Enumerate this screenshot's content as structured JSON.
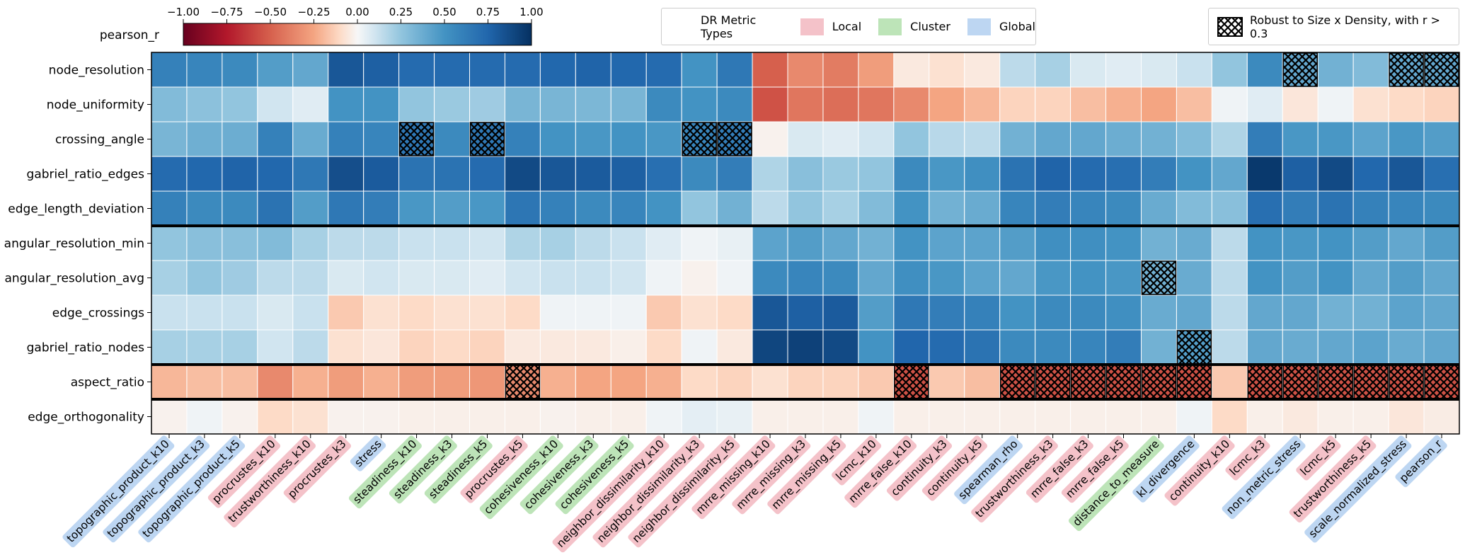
{
  "colorbar": {
    "label": "pearson_r",
    "ticks": [
      "−1.00",
      "−0.75",
      "−0.50",
      "−0.25",
      "0.00",
      "0.25",
      "0.50",
      "0.75",
      "1.00"
    ]
  },
  "legend": {
    "title": "DR Metric Types",
    "items": [
      {
        "label": "Local",
        "color": "#f4c2c9"
      },
      {
        "label": "Cluster",
        "color": "#bde4b8"
      },
      {
        "label": "Global",
        "color": "#bdd6f2"
      }
    ]
  },
  "hatch_legend": {
    "label": "Robust to Size x Density, with r > 0.3"
  },
  "chart_data": {
    "type": "heatmap",
    "colormap": "RdBu",
    "vmin": -1.0,
    "vmax": 1.0,
    "row_groups_separated_after": [
      4,
      8,
      9
    ],
    "rows": [
      "node_resolution",
      "node_uniformity",
      "crossing_angle",
      "gabriel_ratio_edges",
      "edge_length_deviation",
      "angular_resolution_min",
      "angular_resolution_avg",
      "edge_crossings",
      "gabriel_ratio_nodes",
      "aspect_ratio",
      "edge_orthogonality"
    ],
    "columns": [
      {
        "name": "topographic_product_k10",
        "type": "Global"
      },
      {
        "name": "topographic_product_k3",
        "type": "Global"
      },
      {
        "name": "topographic_product_k5",
        "type": "Global"
      },
      {
        "name": "procrustes_k10",
        "type": "Local"
      },
      {
        "name": "trustworthiness_k10",
        "type": "Local"
      },
      {
        "name": "procrustes_k3",
        "type": "Local"
      },
      {
        "name": "stress",
        "type": "Global"
      },
      {
        "name": "steadiness_k10",
        "type": "Cluster"
      },
      {
        "name": "steadiness_k3",
        "type": "Cluster"
      },
      {
        "name": "steadiness_k5",
        "type": "Cluster"
      },
      {
        "name": "procrustes_k5",
        "type": "Local"
      },
      {
        "name": "cohesiveness_k10",
        "type": "Cluster"
      },
      {
        "name": "cohesiveness_k3",
        "type": "Cluster"
      },
      {
        "name": "cohesiveness_k5",
        "type": "Cluster"
      },
      {
        "name": "neighbor_dissimilarity_k10",
        "type": "Local"
      },
      {
        "name": "neighbor_dissimilarity_k3",
        "type": "Local"
      },
      {
        "name": "neighbor_dissimilarity_k5",
        "type": "Local"
      },
      {
        "name": "mrre_missing_k10",
        "type": "Local"
      },
      {
        "name": "mrre_missing_k3",
        "type": "Local"
      },
      {
        "name": "mrre_missing_k5",
        "type": "Local"
      },
      {
        "name": "lcmc_k10",
        "type": "Local"
      },
      {
        "name": "mrre_false_k10",
        "type": "Local"
      },
      {
        "name": "continuity_k3",
        "type": "Local"
      },
      {
        "name": "continuity_k5",
        "type": "Local"
      },
      {
        "name": "spearman_rho",
        "type": "Global"
      },
      {
        "name": "trustworthiness_k3",
        "type": "Local"
      },
      {
        "name": "mrre_false_k3",
        "type": "Local"
      },
      {
        "name": "mrre_false_k5",
        "type": "Local"
      },
      {
        "name": "distance_to_measure",
        "type": "Cluster"
      },
      {
        "name": "kl_divergence",
        "type": "Global"
      },
      {
        "name": "continuity_k10",
        "type": "Local"
      },
      {
        "name": "lcmc_k3",
        "type": "Local"
      },
      {
        "name": "non_metric_stress",
        "type": "Global"
      },
      {
        "name": "lcmc_k5",
        "type": "Local"
      },
      {
        "name": "trustworthiness_k5",
        "type": "Local"
      },
      {
        "name": "scale_normalized_stress",
        "type": "Global"
      },
      {
        "name": "pearson_r",
        "type": "Global"
      }
    ],
    "values": [
      [
        0.6,
        0.58,
        0.55,
        0.45,
        0.4,
        0.82,
        0.78,
        0.72,
        0.72,
        0.72,
        0.72,
        0.74,
        0.76,
        0.74,
        0.72,
        0.5,
        0.65,
        -0.5,
        -0.35,
        -0.4,
        -0.28,
        -0.05,
        -0.08,
        -0.05,
        0.15,
        0.2,
        0.08,
        0.06,
        0.08,
        0.12,
        0.25,
        0.55,
        0.4,
        0.35,
        0.3,
        0.4,
        0.4
      ],
      [
        0.3,
        0.27,
        0.25,
        0.1,
        0.06,
        0.5,
        0.5,
        0.25,
        0.23,
        0.22,
        0.33,
        0.33,
        0.32,
        0.33,
        0.55,
        0.5,
        0.55,
        -0.55,
        -0.42,
        -0.45,
        -0.42,
        -0.35,
        -0.25,
        -0.2,
        -0.12,
        -0.12,
        -0.18,
        -0.22,
        -0.25,
        -0.18,
        0.02,
        0.06,
        -0.06,
        0.02,
        -0.08,
        -0.1,
        -0.12
      ],
      [
        0.33,
        0.36,
        0.37,
        0.6,
        0.38,
        0.6,
        0.58,
        0.65,
        0.55,
        0.65,
        0.6,
        0.5,
        0.48,
        0.5,
        0.48,
        0.58,
        0.62,
        -0.02,
        0.08,
        0.06,
        0.1,
        0.25,
        0.16,
        0.15,
        0.35,
        0.4,
        0.4,
        0.37,
        0.35,
        0.3,
        0.18,
        0.62,
        0.48,
        0.48,
        0.42,
        0.48,
        0.45
      ],
      [
        0.72,
        0.74,
        0.76,
        0.74,
        0.65,
        0.86,
        0.8,
        0.68,
        0.68,
        0.72,
        0.88,
        0.82,
        0.8,
        0.78,
        0.7,
        0.55,
        0.62,
        0.18,
        0.28,
        0.23,
        0.25,
        0.55,
        0.48,
        0.52,
        0.68,
        0.76,
        0.72,
        0.7,
        0.62,
        0.5,
        0.4,
        0.96,
        0.78,
        0.88,
        0.74,
        0.82,
        0.7
      ],
      [
        0.6,
        0.55,
        0.55,
        0.68,
        0.45,
        0.65,
        0.62,
        0.48,
        0.45,
        0.48,
        0.66,
        0.6,
        0.55,
        0.58,
        0.5,
        0.25,
        0.35,
        0.15,
        0.25,
        0.2,
        0.3,
        0.5,
        0.35,
        0.38,
        0.58,
        0.62,
        0.58,
        0.55,
        0.38,
        0.3,
        0.28,
        0.7,
        0.62,
        0.68,
        0.6,
        0.58,
        0.55
      ],
      [
        0.25,
        0.28,
        0.28,
        0.3,
        0.2,
        0.15,
        0.15,
        0.12,
        0.12,
        0.1,
        0.18,
        0.2,
        0.15,
        0.12,
        0.06,
        0.02,
        0.04,
        0.42,
        0.45,
        0.4,
        0.35,
        0.5,
        0.42,
        0.42,
        0.45,
        0.52,
        0.52,
        0.5,
        0.35,
        0.38,
        0.15,
        0.5,
        0.48,
        0.5,
        0.45,
        0.4,
        0.45
      ],
      [
        0.2,
        0.25,
        0.22,
        0.15,
        0.15,
        0.08,
        0.1,
        0.08,
        0.08,
        0.06,
        0.1,
        0.12,
        0.12,
        0.1,
        0.02,
        -0.02,
        0.02,
        0.55,
        0.58,
        0.55,
        0.4,
        0.52,
        0.48,
        0.42,
        0.4,
        0.48,
        0.5,
        0.48,
        0.35,
        0.38,
        0.15,
        0.5,
        0.45,
        0.5,
        0.4,
        0.45,
        0.4
      ],
      [
        0.12,
        0.12,
        0.12,
        0.08,
        0.12,
        -0.15,
        -0.08,
        -0.1,
        -0.08,
        -0.08,
        -0.1,
        0.02,
        0.02,
        0.02,
        -0.15,
        -0.08,
        -0.1,
        0.82,
        0.78,
        0.8,
        0.45,
        0.65,
        0.62,
        0.6,
        0.5,
        0.55,
        0.55,
        0.52,
        0.38,
        0.4,
        0.15,
        0.4,
        0.4,
        0.35,
        0.35,
        0.42,
        0.4
      ],
      [
        0.2,
        0.2,
        0.2,
        0.1,
        0.15,
        -0.08,
        -0.06,
        -0.12,
        -0.1,
        -0.12,
        -0.05,
        -0.05,
        -0.05,
        -0.03,
        -0.1,
        0.02,
        -0.05,
        0.9,
        0.92,
        0.88,
        0.5,
        0.75,
        0.72,
        0.68,
        0.55,
        0.55,
        0.58,
        0.62,
        0.35,
        0.45,
        0.15,
        0.4,
        0.38,
        0.4,
        0.42,
        0.38,
        0.4
      ],
      [
        -0.2,
        -0.18,
        -0.18,
        -0.35,
        -0.22,
        -0.28,
        -0.22,
        -0.28,
        -0.28,
        -0.3,
        -0.35,
        -0.22,
        -0.25,
        -0.25,
        -0.22,
        -0.1,
        -0.12,
        -0.08,
        -0.12,
        -0.12,
        -0.15,
        -0.55,
        -0.15,
        -0.18,
        -0.55,
        -0.55,
        -0.55,
        -0.55,
        -0.55,
        -0.55,
        -0.15,
        -0.55,
        -0.55,
        -0.55,
        -0.55,
        -0.55,
        -0.55
      ],
      [
        -0.02,
        0.02,
        -0.02,
        -0.1,
        -0.08,
        -0.02,
        -0.02,
        -0.03,
        -0.03,
        -0.03,
        -0.03,
        -0.02,
        -0.03,
        -0.03,
        0.02,
        0.05,
        0.04,
        -0.03,
        -0.03,
        -0.03,
        0.02,
        -0.03,
        -0.03,
        -0.03,
        -0.03,
        -0.03,
        -0.03,
        -0.03,
        -0.03,
        0.02,
        -0.1,
        -0.03,
        -0.05,
        -0.03,
        -0.03,
        -0.06,
        -0.04
      ]
    ],
    "hatched_cells": [
      [
        0,
        32
      ],
      [
        0,
        35
      ],
      [
        0,
        36
      ],
      [
        2,
        7
      ],
      [
        2,
        9
      ],
      [
        2,
        15
      ],
      [
        2,
        16
      ],
      [
        6,
        28
      ],
      [
        8,
        29
      ],
      [
        9,
        10
      ],
      [
        9,
        21
      ],
      [
        9,
        24
      ],
      [
        9,
        25
      ],
      [
        9,
        26
      ],
      [
        9,
        27
      ],
      [
        9,
        28
      ],
      [
        9,
        29
      ],
      [
        9,
        31
      ],
      [
        9,
        32
      ],
      [
        9,
        33
      ],
      [
        9,
        34
      ],
      [
        9,
        35
      ],
      [
        9,
        36
      ]
    ]
  }
}
